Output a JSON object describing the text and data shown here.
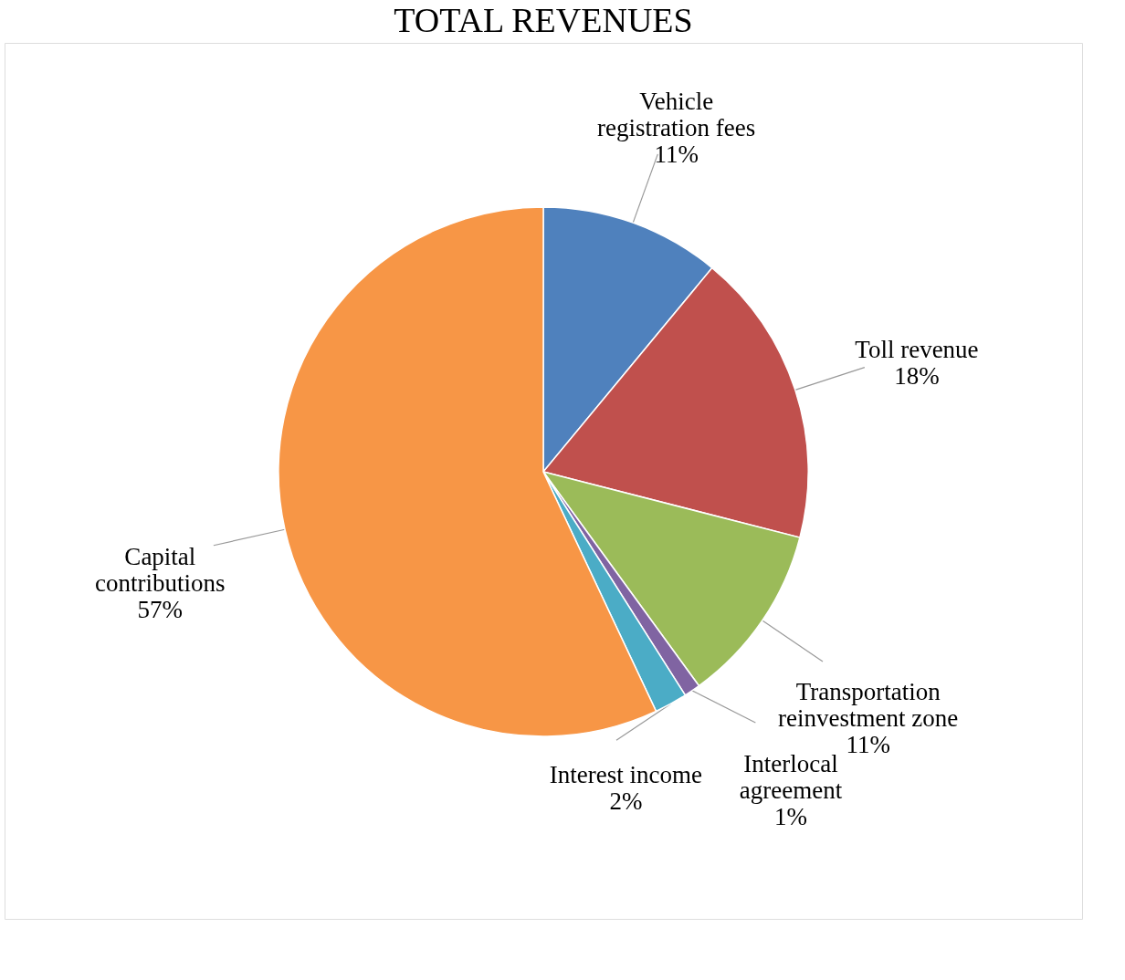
{
  "chart_data": {
    "type": "pie",
    "title": "TOTAL REVENUES",
    "categories": [
      "Vehicle registration fees",
      "Toll revenue",
      "Transportation reinvestment zone",
      "Interlocal agreement",
      "Interest income",
      "Capital contributions"
    ],
    "values": [
      11,
      18,
      11,
      1,
      2,
      57
    ],
    "colors": [
      "#4f81bd",
      "#c0504d",
      "#9bbb59",
      "#8064a2",
      "#4bacc6",
      "#f79646"
    ],
    "value_labels": [
      "11%",
      "18%",
      "11%",
      "1%",
      "2%",
      "57%"
    ],
    "legend": false
  }
}
